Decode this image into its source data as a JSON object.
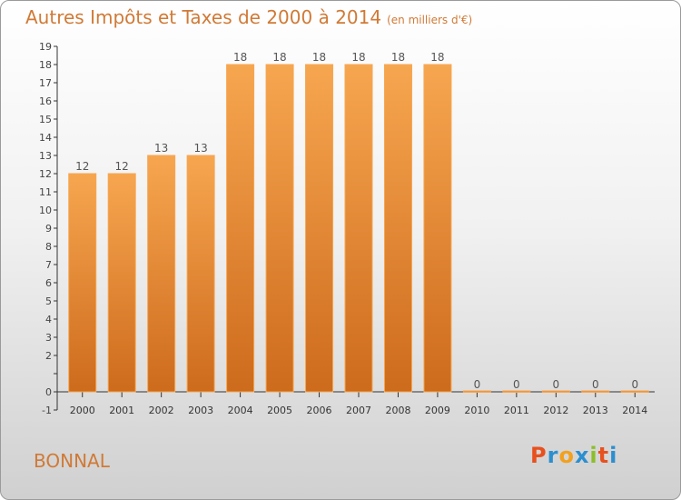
{
  "header": {
    "title": "Autres Impôts et Taxes de 2000 à 2014",
    "subtitle": "(en milliers d'€)"
  },
  "footer": {
    "commune": "BONNAL",
    "logo_text": "Proxiti"
  },
  "colors": {
    "accent": "#d07a36",
    "bar_light": "#f7a650",
    "bar_dark": "#cd6b1c",
    "logo_letters": [
      "#e8501e",
      "#2a8fd0",
      "#f2a11e",
      "#2a8fd0",
      "#8bbf2a",
      "#e8501e",
      "#2a8fd0"
    ]
  },
  "chart_data": {
    "type": "bar",
    "categories": [
      "2000",
      "2001",
      "2002",
      "2003",
      "2004",
      "2005",
      "2006",
      "2007",
      "2008",
      "2009",
      "2010",
      "2011",
      "2012",
      "2013",
      "2014"
    ],
    "values": [
      12,
      12,
      13,
      13,
      18,
      18,
      18,
      18,
      18,
      18,
      0,
      0,
      0,
      0,
      0
    ],
    "ylim": [
      -1,
      19
    ],
    "yticks": [
      -1,
      0,
      1,
      2,
      3,
      4,
      5,
      6,
      7,
      8,
      9,
      10,
      11,
      12,
      13,
      14,
      15,
      16,
      17,
      18,
      19
    ],
    "ytick_labels": [
      "-1",
      "0",
      "",
      "2",
      "3",
      "4",
      "5",
      "6",
      "7",
      "8",
      "9",
      "10",
      "11",
      "12",
      "13",
      "14",
      "15",
      "16",
      "17",
      "18",
      "19"
    ],
    "grid": false,
    "data_labels": true
  }
}
